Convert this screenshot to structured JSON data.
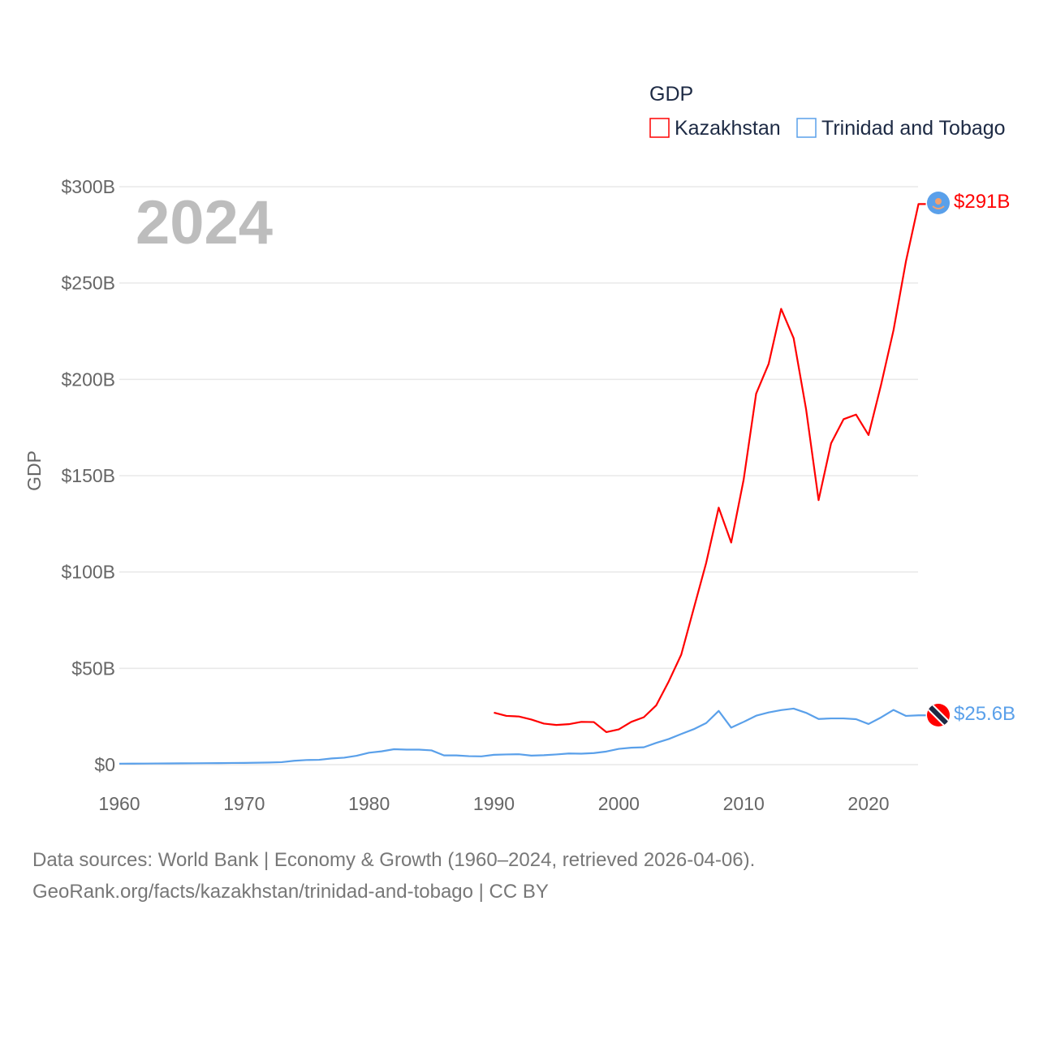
{
  "chart_data": {
    "type": "line",
    "title": "GDP",
    "year_label": "2024",
    "ylabel": "GDP",
    "xlabel": "",
    "xlim": [
      1960,
      2024
    ],
    "ylim": [
      0,
      300
    ],
    "x_ticks": [
      "1960",
      "1970",
      "1980",
      "1990",
      "2000",
      "2010",
      "2020"
    ],
    "y_ticks": [
      {
        "value": 0,
        "label": "$0"
      },
      {
        "value": 50,
        "label": "$50B"
      },
      {
        "value": 100,
        "label": "$100B"
      },
      {
        "value": 150,
        "label": "$150B"
      },
      {
        "value": 200,
        "label": "$200B"
      },
      {
        "value": 250,
        "label": "$250B"
      },
      {
        "value": 300,
        "label": "$300B"
      }
    ],
    "grid": true,
    "legend_position": "top-right",
    "series": [
      {
        "name": "Kazakhstan",
        "color": "#ff0000",
        "end_label": "$291B",
        "start_year": 1990,
        "values": [
          27.0,
          25.3,
          25.0,
          23.4,
          21.3,
          20.6,
          21.0,
          22.2,
          22.1,
          16.9,
          18.3,
          22.2,
          24.6,
          30.8,
          43.2,
          57.1,
          81.0,
          104.8,
          133.4,
          115.3,
          148.0,
          192.6,
          208.0,
          236.6,
          221.4,
          184.4,
          137.3,
          166.8,
          179.3,
          181.7,
          171.1,
          197.1,
          225.5,
          261.4,
          291.0
        ]
      },
      {
        "name": "Trinidad and Tobago",
        "color": "#5aa0ea",
        "end_label": "$25.6B",
        "start_year": 1960,
        "values": [
          0.5,
          0.53,
          0.56,
          0.6,
          0.64,
          0.68,
          0.72,
          0.76,
          0.8,
          0.86,
          0.9,
          1.0,
          1.1,
          1.3,
          2.0,
          2.4,
          2.5,
          3.2,
          3.6,
          4.6,
          6.2,
          6.9,
          8.0,
          7.8,
          7.8,
          7.4,
          4.8,
          4.8,
          4.4,
          4.3,
          5.1,
          5.3,
          5.4,
          4.7,
          4.9,
          5.3,
          5.8,
          5.7,
          6.0,
          6.8,
          8.2,
          8.8,
          9.0,
          11.3,
          13.3,
          15.9,
          18.4,
          21.6,
          27.9,
          19.2,
          22.2,
          25.4,
          27.1,
          28.3,
          29.1,
          26.9,
          23.7,
          24.0,
          24.0,
          23.6,
          21.1,
          24.5,
          28.4,
          25.3,
          25.6
        ]
      }
    ]
  },
  "footer": {
    "line1": "Data sources: World Bank | Economy & Growth (1960–2024, retrieved 2026-04-06).",
    "line2": "GeoRank.org/facts/kazakhstan/trinidad-and-tobago | CC BY"
  }
}
